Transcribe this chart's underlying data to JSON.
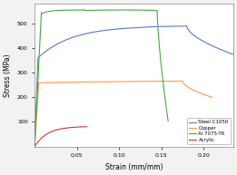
{
  "title": "",
  "xlabel": "Strain (mm/mm)",
  "ylabel": "Stress (MPa)",
  "xlim": [
    0,
    0.235
  ],
  "ylim": [
    0,
    580
  ],
  "xticks": [
    0.05,
    0.1,
    0.15,
    0.2
  ],
  "yticks": [
    100,
    200,
    300,
    400,
    500
  ],
  "legend": [
    "Steel C1050",
    "Copper",
    "Al 7075-T6",
    "Acrylic"
  ],
  "colors": {
    "Steel C1050": "#5577cc",
    "Copper": "#FF9944",
    "Al 7075-T6": "#44aa44",
    "Acrylic": "#cc3333"
  },
  "background_color": "#f2f2f2",
  "plot_background": "#ffffff"
}
